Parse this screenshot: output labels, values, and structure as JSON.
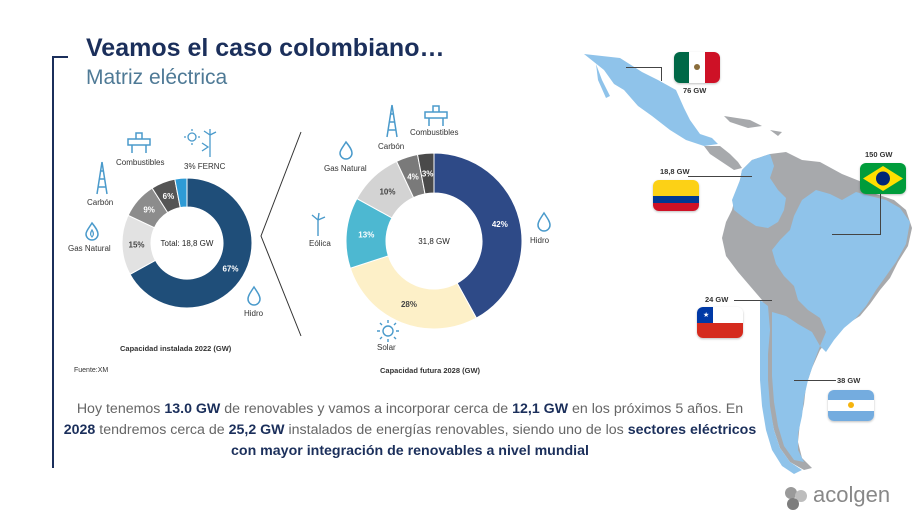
{
  "header": {
    "title": "Veamos el caso colombiano…",
    "subtitle": "Matriz eléctrica"
  },
  "source_note": "Fuente:XM",
  "chart_data": [
    {
      "type": "pie",
      "caption": "Capacidad instalada 2022 (GW)",
      "center_label": "Total: 18,8 GW",
      "categories": [
        "Hidro",
        "Gas Natural",
        "Carbón",
        "Combustibles",
        "FERNC"
      ],
      "values": [
        67,
        15,
        9,
        6,
        3
      ],
      "value_labels": [
        "67%",
        "15%",
        "9%",
        "6%",
        "3% FERNC"
      ],
      "colors": [
        "#1f4e79",
        "#e2e2e2",
        "#8c8c8c",
        "#555555",
        "#2e9bd6"
      ],
      "unit": "%"
    },
    {
      "type": "pie",
      "caption": "Capacidad futura 2028 (GW)",
      "center_label": "31,8 GW",
      "categories": [
        "Hidro",
        "Solar",
        "Eólica",
        "Gas Natural",
        "Carbón",
        "Combustibles"
      ],
      "values": [
        42,
        28,
        13,
        10,
        4,
        3
      ],
      "value_labels": [
        "42%",
        "28%",
        "13%",
        "10%",
        "4%",
        "3%"
      ],
      "colors": [
        "#2e4a87",
        "#fdf0c8",
        "#4db8d1",
        "#d3d3d3",
        "#7a7a7a",
        "#4a4a4a"
      ],
      "unit": "%"
    }
  ],
  "body": {
    "t1": "Hoy tenemos ",
    "b1": "13.0 GW",
    "t2": " de renovables y vamos a incorporar cerca de ",
    "b2": "12,1 GW",
    "t3": " en los próximos 5 años. En ",
    "b3": "2028",
    "t4": " tendremos cerca de ",
    "b4": "25,2 GW",
    "t5": " instalados de energías  renovables, siendo uno de los ",
    "b5": "sectores eléctricos con mayor  integración de renovables a nivel mundial"
  },
  "map": {
    "countries": [
      {
        "name": "México",
        "capacity": "76 GW"
      },
      {
        "name": "Colombia",
        "capacity": "18,8 GW"
      },
      {
        "name": "Brasil",
        "capacity": "150 GW"
      },
      {
        "name": "Chile",
        "capacity": "24 GW"
      },
      {
        "name": "Argentina",
        "capacity": "38 GW"
      }
    ],
    "colors": {
      "highlight": "#8fc3ea",
      "other": "#a7a9ac"
    }
  },
  "logo": {
    "text": "acolgen"
  }
}
